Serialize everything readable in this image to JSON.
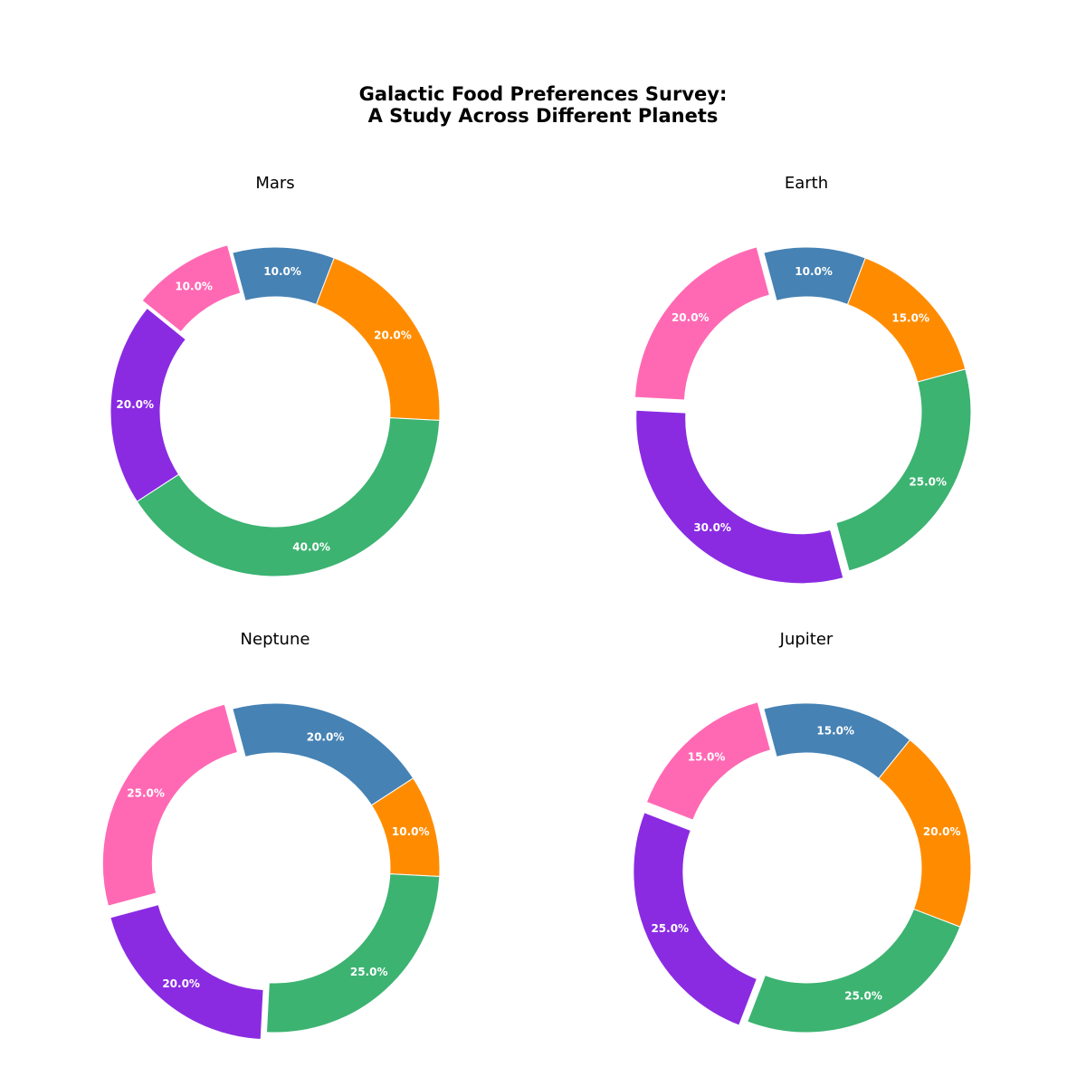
{
  "title_lines": [
    "Galactic Food Preferences Survey:",
    "A Study Across Different Planets"
  ],
  "colors": {
    "blue": "#4682B4",
    "orange": "#FF8C00",
    "green": "#3CB371",
    "purple": "#8A2BE2",
    "pink": "#FF69B4"
  },
  "chart_data": [
    {
      "type": "pie",
      "style": "donut",
      "title": "Mars",
      "slices": [
        {
          "color": "blue",
          "value": 10.0,
          "label": "10.0%"
        },
        {
          "color": "orange",
          "value": 20.0,
          "label": "20.0%"
        },
        {
          "color": "green",
          "value": 40.0,
          "label": "40.0%"
        },
        {
          "color": "purple",
          "value": 20.0,
          "label": "20.0%"
        },
        {
          "color": "pink",
          "value": 10.0,
          "label": "10.0%",
          "exploded": true
        }
      ]
    },
    {
      "type": "pie",
      "style": "donut",
      "title": "Earth",
      "slices": [
        {
          "color": "blue",
          "value": 10.0,
          "label": "10.0%"
        },
        {
          "color": "orange",
          "value": 15.0,
          "label": "15.0%"
        },
        {
          "color": "green",
          "value": 25.0,
          "label": "25.0%"
        },
        {
          "color": "purple",
          "value": 30.0,
          "label": "30.0%",
          "exploded": true
        },
        {
          "color": "pink",
          "value": 20.0,
          "label": "20.0%",
          "exploded": true
        }
      ]
    },
    {
      "type": "pie",
      "style": "donut",
      "title": "Neptune",
      "slices": [
        {
          "color": "blue",
          "value": 20.0,
          "label": "20.0%"
        },
        {
          "color": "orange",
          "value": 10.0,
          "label": "10.0%"
        },
        {
          "color": "green",
          "value": 25.0,
          "label": "25.0%"
        },
        {
          "color": "purple",
          "value": 20.0,
          "label": "20.0%",
          "exploded": true
        },
        {
          "color": "pink",
          "value": 25.0,
          "label": "25.0%",
          "exploded": true
        }
      ]
    },
    {
      "type": "pie",
      "style": "donut",
      "title": "Jupiter",
      "slices": [
        {
          "color": "blue",
          "value": 15.0,
          "label": "15.0%"
        },
        {
          "color": "orange",
          "value": 20.0,
          "label": "20.0%"
        },
        {
          "color": "green",
          "value": 25.0,
          "label": "25.0%"
        },
        {
          "color": "purple",
          "value": 25.0,
          "label": "25.0%",
          "exploded": true
        },
        {
          "color": "pink",
          "value": 15.0,
          "label": "15.0%",
          "exploded": true
        }
      ]
    }
  ]
}
